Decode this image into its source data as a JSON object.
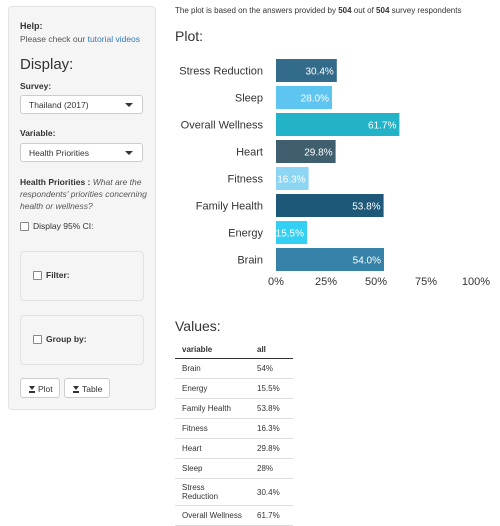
{
  "sidebar": {
    "help_title": "Help:",
    "help_text_prefix": "Please check our ",
    "help_link": "tutorial videos",
    "display_title": "Display:",
    "survey_label": "Survey:",
    "survey_value": "Thailand (2017)",
    "variable_label": "Variable:",
    "variable_value": "Health Priorities",
    "hp_bold": "Health Priorities :",
    "hp_question": " What are the respondents' priorities concerning health or wellness?",
    "ci_label": "Display 95% CI:",
    "filter_label": "Filter:",
    "groupby_label": "Group by:",
    "plot_button": "Plot",
    "table_button": "Table"
  },
  "notice": {
    "prefix": "The plot is based on the answers provided by ",
    "answered": "504",
    "middle": " out of ",
    "total": "504",
    "suffix": " survey respondents"
  },
  "plot_title": "Plot:",
  "values_title": "Values:",
  "chart_data": {
    "type": "bar",
    "orientation": "horizontal",
    "categories": [
      "Stress Reduction",
      "Sleep",
      "Overall Wellness",
      "Heart",
      "Fitness",
      "Family Health",
      "Energy",
      "Brain"
    ],
    "values": [
      30.4,
      28.0,
      61.7,
      29.8,
      16.3,
      53.8,
      15.5,
      54.0
    ],
    "data_labels": [
      "30.4%",
      "28.0%",
      "61.7%",
      "29.8%",
      "16.3%",
      "53.8%",
      "15.5%",
      "54.0%"
    ],
    "colors": [
      "#336b8a",
      "#5ec4f0",
      "#23b3c8",
      "#3f5f6e",
      "#8dd6f3",
      "#1e5879",
      "#34d0f4",
      "#3682a8"
    ],
    "xlim": [
      0,
      100
    ],
    "x_ticks": [
      0,
      25,
      50,
      75,
      100
    ],
    "x_tick_labels": [
      "0%",
      "25%",
      "50%",
      "75%",
      "100%"
    ],
    "grid": false
  },
  "table": {
    "headers": [
      "variable",
      "all"
    ],
    "rows": [
      [
        "Brain",
        "54%"
      ],
      [
        "Energy",
        "15.5%"
      ],
      [
        "Family Health",
        "53.8%"
      ],
      [
        "Fitness",
        "16.3%"
      ],
      [
        "Heart",
        "29.8%"
      ],
      [
        "Sleep",
        "28%"
      ],
      [
        "Stress Reduction",
        "30.4%"
      ],
      [
        "Overall Wellness",
        "61.7%"
      ]
    ]
  }
}
